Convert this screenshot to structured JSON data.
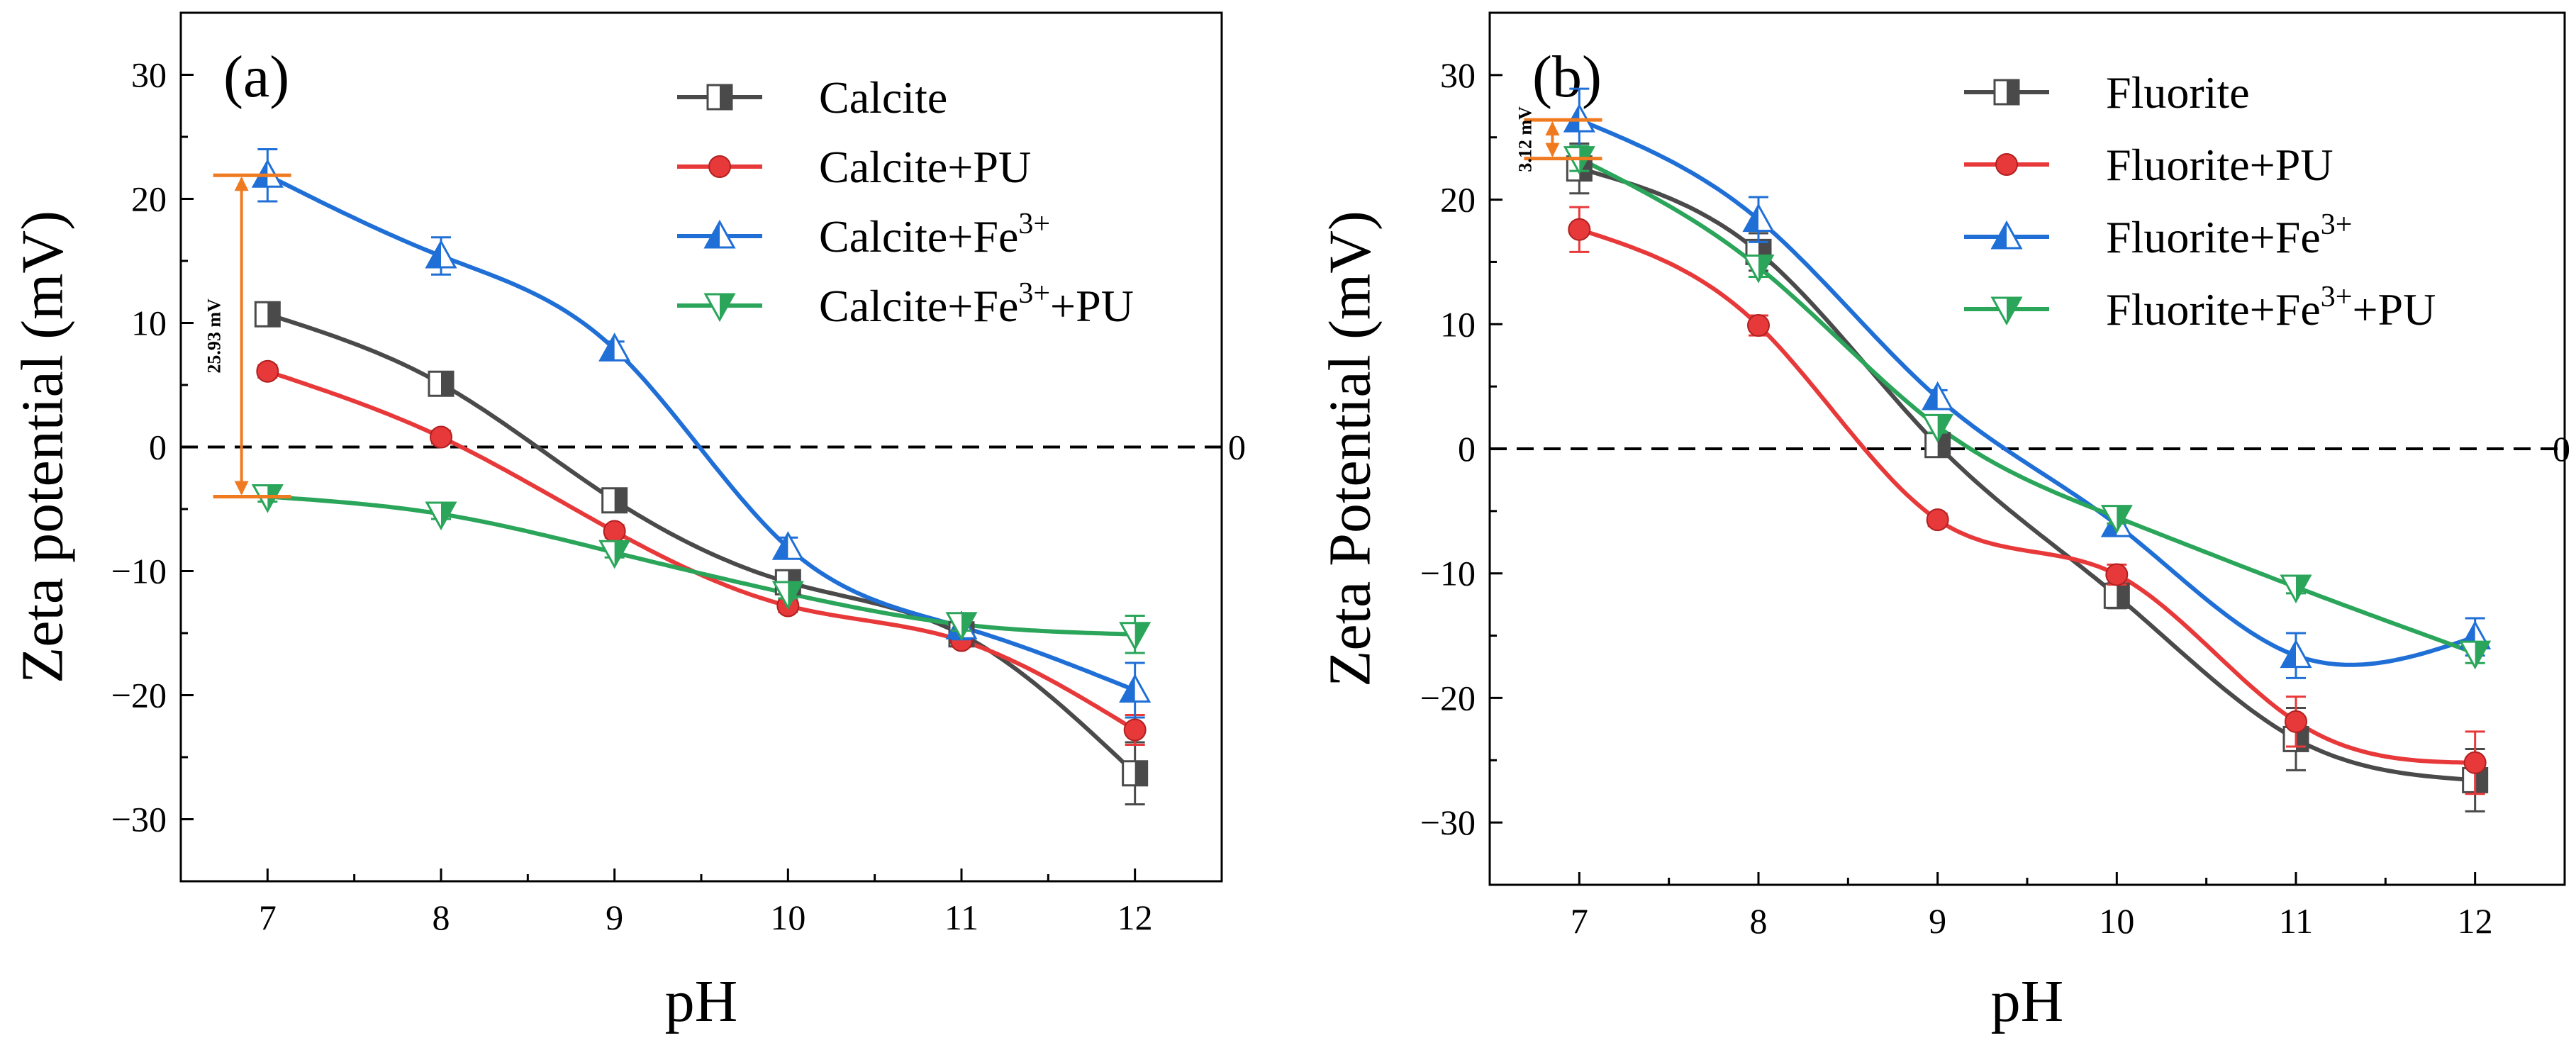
{
  "chart_data": [
    {
      "type": "line",
      "panel_label": "(a)",
      "xlabel": "pH",
      "ylabel": "Zeta potential (mV)",
      "xlim": [
        6.5,
        12.5
      ],
      "ylim": [
        -35,
        35
      ],
      "xticks": [
        7,
        8,
        9,
        10,
        11,
        12
      ],
      "yticks": [
        -30,
        -20,
        -10,
        0,
        10,
        20,
        30
      ],
      "ytick_labels": [
        "−30",
        "−20",
        "−10",
        "0",
        "10",
        "20",
        "30"
      ],
      "zero_line_label": "0",
      "legend_position": "top-right",
      "annotation": {
        "text": "25.93 mV",
        "x": 6.85,
        "y_from": 21.9,
        "y_to": -4.0
      },
      "series": [
        {
          "name": "Calcite",
          "legend_main": "Calcite",
          "legend_sup": "",
          "legend_suffix": "",
          "color": "#4a4a4a",
          "marker": "square-half",
          "x": [
            7,
            8,
            9,
            10,
            11,
            12
          ],
          "y": [
            10.7,
            5.1,
            -4.3,
            -10.9,
            -15.1,
            -26.3
          ],
          "err": [
            0.7,
            0.5,
            0.5,
            0.6,
            0.5,
            2.5
          ]
        },
        {
          "name": "Calcite+PU",
          "legend_main": "Calcite+PU",
          "legend_sup": "",
          "legend_suffix": "",
          "color": "#e8393a",
          "marker": "circle",
          "x": [
            7,
            8,
            9,
            10,
            11,
            12
          ],
          "y": [
            6.1,
            0.8,
            -6.8,
            -12.8,
            -15.6,
            -22.8
          ],
          "err": [
            0.5,
            0.5,
            0.5,
            0.5,
            0.5,
            1.2
          ]
        },
        {
          "name": "Calcite+Fe3+",
          "legend_main": "Calcite+Fe",
          "legend_sup": "3+",
          "legend_suffix": "",
          "color": "#1f6fd6",
          "marker": "triangle-up-half",
          "x": [
            7,
            8,
            9,
            10,
            11,
            12
          ],
          "y": [
            21.9,
            15.4,
            7.9,
            -8.1,
            -14.5,
            -19.6
          ],
          "err": [
            2.1,
            1.5,
            0.6,
            0.8,
            1.0,
            2.2
          ]
        },
        {
          "name": "Calcite+Fe3++PU",
          "legend_main": "Calcite+Fe",
          "legend_sup": "3+",
          "legend_suffix": "+PU",
          "color": "#2aa55a",
          "marker": "triangle-down-half",
          "x": [
            7,
            8,
            9,
            10,
            11,
            12
          ],
          "y": [
            -4.0,
            -5.4,
            -8.5,
            -11.8,
            -14.3,
            -15.1
          ],
          "err": [
            0.4,
            0.4,
            0.4,
            0.4,
            0.5,
            1.5
          ]
        }
      ]
    },
    {
      "type": "line",
      "panel_label": "(b)",
      "xlabel": "pH",
      "ylabel": "Zeta Potential (mV)",
      "xlim": [
        6.5,
        12.5
      ],
      "ylim": [
        -35,
        35
      ],
      "xticks": [
        7,
        8,
        9,
        10,
        11,
        12
      ],
      "yticks": [
        -30,
        -20,
        -10,
        0,
        10,
        20,
        30
      ],
      "ytick_labels": [
        "−30",
        "−20",
        "−10",
        "0",
        "10",
        "20",
        "30"
      ],
      "zero_line_label": "0",
      "legend_position": "top-right",
      "annotation": {
        "text": "3.12 mV",
        "x": 6.85,
        "y_from": 26.4,
        "y_to": 23.3
      },
      "series": [
        {
          "name": "Fluorite",
          "legend_main": "Fluorite",
          "legend_sup": "",
          "legend_suffix": "",
          "color": "#4a4a4a",
          "marker": "square-half",
          "x": [
            7,
            8,
            9,
            10,
            11,
            12
          ],
          "y": [
            22.5,
            15.8,
            0.3,
            -11.8,
            -23.3,
            -26.6
          ],
          "err": [
            2.0,
            1.5,
            0.5,
            1.0,
            2.5,
            2.5
          ]
        },
        {
          "name": "Fluorite+PU",
          "legend_main": "Fluorite+PU",
          "legend_sup": "",
          "legend_suffix": "",
          "color": "#e8393a",
          "marker": "circle",
          "x": [
            7,
            8,
            9,
            10,
            11,
            12
          ],
          "y": [
            17.6,
            9.9,
            -5.7,
            -10.1,
            -21.9,
            -25.2
          ],
          "err": [
            1.8,
            0.8,
            0.5,
            0.8,
            2.0,
            2.5
          ]
        },
        {
          "name": "Fluorite+Fe3+",
          "legend_main": "Fluorite+Fe",
          "legend_sup": "3+",
          "legend_suffix": "",
          "color": "#1f6fd6",
          "marker": "triangle-up-half",
          "x": [
            7,
            8,
            9,
            10,
            11,
            12
          ],
          "y": [
            26.4,
            18.4,
            4.1,
            -6.1,
            -16.6,
            -15.1
          ],
          "err": [
            2.5,
            1.8,
            0.6,
            0.8,
            1.8,
            1.5
          ]
        },
        {
          "name": "Fluorite+Fe3++PU",
          "legend_main": "Fluorite+Fe",
          "legend_sup": "3+",
          "legend_suffix": "+PU",
          "color": "#2aa55a",
          "marker": "triangle-down-half",
          "x": [
            7,
            8,
            9,
            10,
            11,
            12
          ],
          "y": [
            23.3,
            14.6,
            1.8,
            -5.5,
            -11.1,
            -16.4
          ],
          "err": [
            1.0,
            0.8,
            0.5,
            0.5,
            0.5,
            0.8
          ]
        }
      ]
    }
  ]
}
